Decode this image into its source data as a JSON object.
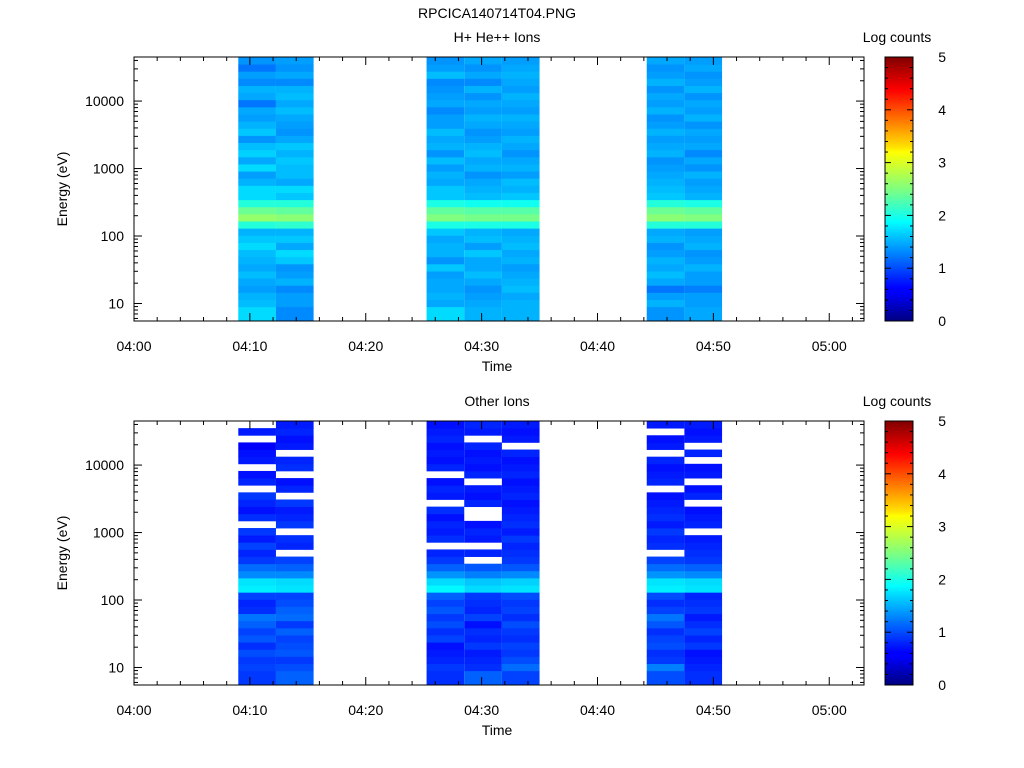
{
  "figure_title": "RPCICA140714T04.PNG",
  "chart_data": [
    {
      "type": "heatmap",
      "title": "H+ He++ Ions",
      "xlabel": "Time",
      "ylabel": "Energy (eV)",
      "xlim": [
        "04:00",
        "05:03"
      ],
      "ylim": [
        5.5,
        45000
      ],
      "yscale": "log",
      "x_ticks": [
        "04:00",
        "04:10",
        "04:20",
        "04:30",
        "04:40",
        "04:50",
        "05:00"
      ],
      "y_ticks": [
        "10",
        "100",
        "1000",
        "10000"
      ],
      "colorbar": {
        "label": "Log counts",
        "range": [
          0,
          5
        ],
        "ticks": [
          "0",
          "1",
          "2",
          "3",
          "4",
          "5"
        ],
        "colormap": "jet"
      },
      "columns": [
        {
          "t_start": "04:09:00",
          "t_end": "04:12:15",
          "log_counts": [
            1.7,
            1.7,
            1.55,
            1.5,
            1.4,
            1.45,
            1.55,
            1.45,
            1.5,
            1.55,
            1.7,
            1.6,
            1.5,
            2.05,
            2.6,
            2.4,
            2.05,
            1.7,
            1.7,
            1.5,
            1.4,
            1.7,
            1.45,
            1.65,
            1.55,
            1.35,
            1.6,
            1.5,
            1.4,
            1.45,
            1.2,
            1.45,
            1.5,
            1.3,
            1.4,
            1.2,
            1.35
          ]
        },
        {
          "t_start": "04:12:15",
          "t_end": "04:15:30",
          "log_counts": [
            1.3,
            1.3,
            1.4,
            1.4,
            1.3,
            1.5,
            1.4,
            1.35,
            1.6,
            1.7,
            1.45,
            1.6,
            1.5,
            2.1,
            2.55,
            2.35,
            2.05,
            1.6,
            1.7,
            1.45,
            1.55,
            1.55,
            1.6,
            1.5,
            1.6,
            1.45,
            1.35,
            1.4,
            1.45,
            1.55,
            1.45,
            1.55,
            1.5,
            1.3,
            1.45,
            1.35,
            1.4
          ]
        },
        {
          "t_start": "04:25:15",
          "t_end": "04:28:30",
          "log_counts": [
            1.7,
            1.7,
            1.45,
            1.5,
            1.45,
            1.45,
            1.4,
            1.6,
            1.35,
            1.5,
            1.5,
            1.45,
            1.6,
            2.0,
            2.5,
            2.35,
            2.0,
            1.6,
            1.6,
            1.45,
            1.5,
            1.4,
            1.55,
            1.35,
            1.5,
            1.45,
            1.55,
            1.4,
            1.4,
            1.3,
            1.45,
            1.4,
            1.35,
            1.3,
            1.55,
            1.4,
            1.35
          ]
        },
        {
          "t_start": "04:28:30",
          "t_end": "04:31:45",
          "log_counts": [
            1.5,
            1.5,
            1.45,
            1.4,
            1.35,
            1.45,
            1.55,
            1.45,
            1.45,
            1.6,
            1.4,
            1.55,
            1.5,
            2.0,
            2.45,
            2.3,
            1.95,
            1.55,
            1.5,
            1.45,
            1.35,
            1.5,
            1.45,
            1.55,
            1.5,
            1.4,
            1.35,
            1.45,
            1.5,
            1.4,
            1.45,
            1.35,
            1.5,
            1.3,
            1.45,
            1.35,
            1.45
          ]
        },
        {
          "t_start": "04:31:45",
          "t_end": "04:35:00",
          "log_counts": [
            1.5,
            1.5,
            1.5,
            1.45,
            1.55,
            1.5,
            1.45,
            1.4,
            1.5,
            1.45,
            1.55,
            1.5,
            1.45,
            2.0,
            2.45,
            2.3,
            1.95,
            1.6,
            1.5,
            1.55,
            1.4,
            1.5,
            1.45,
            1.35,
            1.45,
            1.5,
            1.4,
            1.45,
            1.5,
            1.4,
            1.45,
            1.5,
            1.4,
            1.45,
            1.5,
            1.45,
            1.4
          ]
        },
        {
          "t_start": "04:44:15",
          "t_end": "04:47:30",
          "log_counts": [
            1.35,
            1.35,
            1.5,
            1.4,
            1.2,
            1.45,
            1.55,
            1.45,
            1.5,
            1.4,
            1.35,
            1.5,
            1.45,
            2.05,
            2.55,
            2.4,
            2.05,
            1.6,
            1.55,
            1.5,
            1.45,
            1.4,
            1.35,
            1.5,
            1.45,
            1.4,
            1.5,
            1.4,
            1.35,
            1.5,
            1.4,
            1.45,
            1.35,
            1.5,
            1.4,
            1.35,
            1.45
          ]
        },
        {
          "t_start": "04:47:30",
          "t_end": "04:50:45",
          "log_counts": [
            1.45,
            1.45,
            1.4,
            1.4,
            1.25,
            1.4,
            1.4,
            1.5,
            1.4,
            1.35,
            1.5,
            1.45,
            1.4,
            2.05,
            2.5,
            2.35,
            2.0,
            1.5,
            1.45,
            1.4,
            1.5,
            1.35,
            1.45,
            1.3,
            1.45,
            1.4,
            1.45,
            1.35,
            1.5,
            1.4,
            1.45,
            1.35,
            1.5,
            1.4,
            1.35,
            1.45,
            1.4
          ]
        }
      ]
    },
    {
      "type": "heatmap",
      "title": "Other Ions",
      "xlabel": "Time",
      "ylabel": "Energy (eV)",
      "xlim": [
        "04:00",
        "05:03"
      ],
      "ylim": [
        5.5,
        45000
      ],
      "yscale": "log",
      "x_ticks": [
        "04:00",
        "04:10",
        "04:20",
        "04:30",
        "04:40",
        "04:50",
        "05:00"
      ],
      "y_ticks": [
        "10",
        "100",
        "1000",
        "10000"
      ],
      "colorbar": {
        "label": "Log counts",
        "range": [
          0,
          5
        ],
        "ticks": [
          "0",
          "1",
          "2",
          "3",
          "4",
          "5"
        ],
        "colormap": "jet"
      },
      "columns": [
        {
          "t_start": "04:09:00",
          "t_end": "04:12:15",
          "log_counts": [
            0.9,
            0.9,
            0.95,
            0.9,
            1.0,
            0.85,
            1.05,
            0.95,
            1.1,
            1.2,
            0.85,
            0.8,
            0.95,
            1.8,
            1.75,
            1.3,
            1.15,
            0.9,
            0.8,
            0.95,
            0.75,
            0.9,
            null,
            0.85,
            0.7,
            0.8,
            0.9,
            null,
            0.8,
            0.7,
            null,
            0.75,
            0.7,
            0.6,
            null,
            0.75,
            null
          ]
        },
        {
          "t_start": "04:12:15",
          "t_end": "04:15:30",
          "log_counts": [
            1.1,
            1.1,
            1.0,
            0.9,
            1.05,
            1.0,
            0.95,
            1.1,
            0.9,
            1.15,
            1.1,
            1.0,
            0.95,
            1.75,
            1.7,
            1.3,
            1.1,
            0.95,
            null,
            0.8,
            0.85,
            null,
            0.9,
            0.8,
            0.75,
            0.9,
            null,
            0.8,
            0.7,
            null,
            0.85,
            0.8,
            null,
            0.75,
            0.7,
            0.8,
            0.75
          ]
        },
        {
          "t_start": "04:25:15",
          "t_end": "04:28:30",
          "log_counts": [
            0.85,
            0.85,
            0.9,
            0.8,
            0.75,
            0.7,
            0.95,
            0.85,
            1.0,
            0.9,
            1.05,
            0.95,
            1.1,
            1.85,
            1.7,
            1.35,
            1.1,
            0.9,
            0.8,
            null,
            0.85,
            0.75,
            0.8,
            0.7,
            0.85,
            null,
            0.75,
            0.8,
            0.7,
            null,
            0.8,
            0.7,
            0.75,
            0.7,
            0.8,
            0.75,
            0.7
          ]
        },
        {
          "t_start": "04:28:30",
          "t_end": "04:31:45",
          "log_counts": [
            1.1,
            1.1,
            0.85,
            0.8,
            0.75,
            0.9,
            0.8,
            0.85,
            0.7,
            0.95,
            0.8,
            0.85,
            0.9,
            1.7,
            1.6,
            1.25,
            1.05,
            null,
            0.8,
            null,
            0.75,
            0.8,
            0.7,
            null,
            null,
            0.8,
            0.7,
            0.75,
            null,
            0.8,
            0.7,
            0.75,
            0.7,
            0.8,
            null,
            0.75,
            0.8
          ]
        },
        {
          "t_start": "04:31:45",
          "t_end": "04:35:00",
          "log_counts": [
            0.95,
            0.95,
            1.15,
            1.0,
            0.9,
            0.95,
            0.85,
            0.9,
            1.0,
            0.85,
            0.95,
            0.9,
            1.0,
            1.75,
            1.65,
            1.3,
            1.05,
            0.9,
            0.85,
            0.8,
            0.9,
            0.75,
            0.85,
            0.8,
            0.75,
            0.7,
            0.8,
            0.75,
            0.7,
            0.8,
            0.75,
            0.7,
            0.8,
            null,
            0.75,
            0.7,
            0.75
          ]
        },
        {
          "t_start": "04:44:15",
          "t_end": "04:47:30",
          "log_counts": [
            1.0,
            1.0,
            1.25,
            0.9,
            0.85,
            1.0,
            0.95,
            0.85,
            1.05,
            1.2,
            0.95,
            0.85,
            1.0,
            1.8,
            1.75,
            1.35,
            1.15,
            0.95,
            null,
            0.85,
            0.8,
            0.9,
            0.75,
            0.85,
            0.8,
            0.75,
            0.7,
            null,
            0.8,
            0.75,
            0.7,
            0.8,
            null,
            0.75,
            0.7,
            null,
            0.75
          ]
        },
        {
          "t_start": "04:47:30",
          "t_end": "04:50:45",
          "log_counts": [
            0.85,
            0.85,
            0.8,
            0.75,
            0.7,
            0.9,
            0.8,
            0.95,
            0.85,
            0.75,
            0.9,
            0.85,
            0.8,
            1.75,
            1.7,
            1.3,
            1.1,
            0.9,
            0.85,
            0.8,
            0.75,
            null,
            0.8,
            0.75,
            0.7,
            null,
            0.8,
            0.7,
            null,
            0.75,
            0.7,
            null,
            0.8,
            null,
            0.75,
            0.7,
            0.75
          ]
        }
      ]
    }
  ]
}
